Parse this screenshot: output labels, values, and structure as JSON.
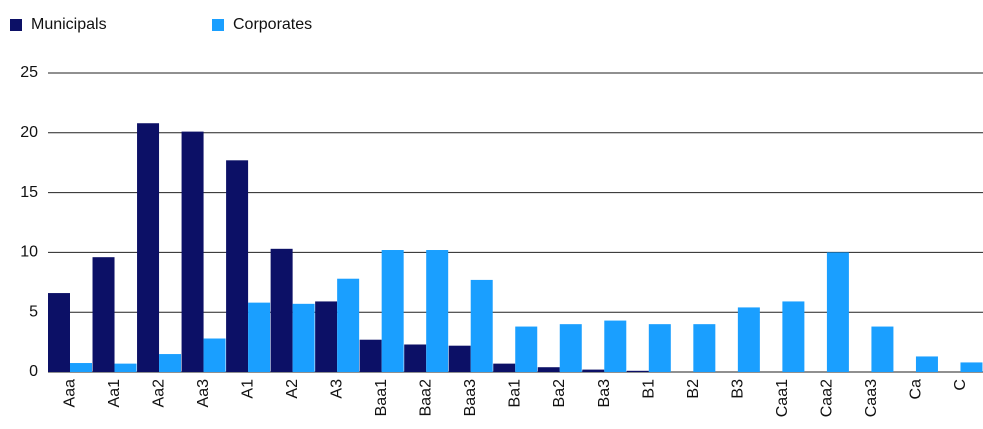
{
  "chart_data": {
    "type": "bar",
    "categories": [
      "Aaa",
      "Aa1",
      "Aa2",
      "Aa3",
      "A1",
      "A2",
      "A3",
      "Baa1",
      "Baa2",
      "Baa3",
      "Ba1",
      "Ba2",
      "Ba3",
      "B1",
      "B2",
      "B3",
      "Caa1",
      "Caa2",
      "Caa3",
      "Ca",
      "C"
    ],
    "series": [
      {
        "name": "Municipals",
        "color": "#0c1066",
        "values": [
          6.6,
          9.6,
          20.8,
          20.1,
          17.7,
          10.3,
          5.9,
          2.7,
          2.3,
          2.2,
          0.7,
          0.4,
          0.2,
          0.1,
          0,
          0,
          0,
          0,
          0,
          0,
          0
        ]
      },
      {
        "name": "Corporates",
        "color": "#1a9fff",
        "values": [
          0.75,
          0.7,
          1.5,
          2.8,
          5.8,
          5.7,
          7.8,
          10.2,
          10.2,
          7.7,
          3.8,
          4.0,
          4.3,
          4.0,
          4.0,
          5.4,
          5.9,
          10.0,
          3.8,
          1.3,
          0.8
        ]
      }
    ],
    "ylim": [
      0,
      25
    ],
    "yticks": [
      0,
      5,
      10,
      15,
      20,
      25
    ],
    "grid": true,
    "legend": "top-left"
  }
}
